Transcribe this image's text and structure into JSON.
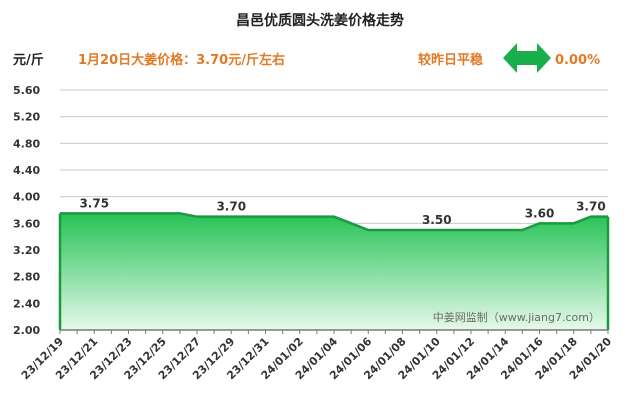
{
  "title": "昌邑优质圆头洗姜价格走势",
  "unit_label": "元/斤",
  "headline": "1月20日大姜价格：3.70元/斤左右",
  "comparison": {
    "label": "较昨日平稳",
    "value": "0.00%",
    "arrow_icon": "double-arrow-icon",
    "arrow_color": "#19b04b"
  },
  "watermark": "中姜网监制（www.jiang7.com）",
  "colors": {
    "area_top": "#25c256",
    "area_bottom": "#e6f9ea",
    "line": "#1a9a3e",
    "grid": "#c9c9c9",
    "accent": "#e07a26"
  },
  "chart_data": {
    "type": "area",
    "title": "昌邑优质圆头洗姜价格走势",
    "ylabel": "元/斤",
    "xlabel": "",
    "ylim": [
      2.0,
      5.6
    ],
    "yticks": [
      "5.60",
      "5.20",
      "4.80",
      "4.40",
      "4.00",
      "3.60",
      "3.20",
      "2.80",
      "2.40",
      "2.00"
    ],
    "grid": "horizontal",
    "x": [
      "23/12/19",
      "23/12/20",
      "23/12/21",
      "23/12/22",
      "23/12/23",
      "23/12/24",
      "23/12/25",
      "23/12/26",
      "23/12/27",
      "23/12/28",
      "23/12/29",
      "23/12/30",
      "23/12/31",
      "24/01/01",
      "24/01/02",
      "24/01/03",
      "24/01/04",
      "24/01/05",
      "24/01/06",
      "24/01/07",
      "24/01/08",
      "24/01/09",
      "24/01/10",
      "24/01/11",
      "24/01/12",
      "24/01/13",
      "24/01/14",
      "24/01/15",
      "24/01/16",
      "24/01/17",
      "24/01/18",
      "24/01/19",
      "24/01/20"
    ],
    "xtick_labels": [
      "23/12/19",
      "23/12/21",
      "23/12/23",
      "23/12/25",
      "23/12/27",
      "23/12/29",
      "23/12/31",
      "24/01/02",
      "24/01/04",
      "24/01/06",
      "24/01/08",
      "24/01/10",
      "24/01/12",
      "24/01/14",
      "24/01/16",
      "24/01/18",
      "24/01/20"
    ],
    "values": [
      3.75,
      3.75,
      3.75,
      3.75,
      3.75,
      3.75,
      3.75,
      3.75,
      3.7,
      3.7,
      3.7,
      3.7,
      3.7,
      3.7,
      3.7,
      3.7,
      3.7,
      3.6,
      3.5,
      3.5,
      3.5,
      3.5,
      3.5,
      3.5,
      3.5,
      3.5,
      3.5,
      3.5,
      3.6,
      3.6,
      3.6,
      3.7,
      3.7
    ],
    "data_labels": [
      {
        "x": "23/12/21",
        "text": "3.75"
      },
      {
        "x": "23/12/29",
        "text": "3.70"
      },
      {
        "x": "24/01/10",
        "text": "3.50"
      },
      {
        "x": "24/01/16",
        "text": "3.60"
      },
      {
        "x": "24/01/19",
        "text": "3.70"
      }
    ]
  }
}
